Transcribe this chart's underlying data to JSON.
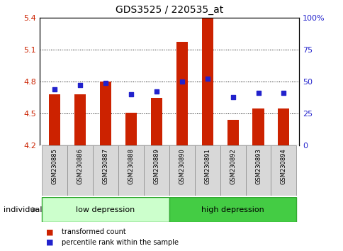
{
  "title": "GDS3525 / 220535_at",
  "samples": [
    "GSM230885",
    "GSM230886",
    "GSM230887",
    "GSM230888",
    "GSM230889",
    "GSM230890",
    "GSM230891",
    "GSM230892",
    "GSM230893",
    "GSM230894"
  ],
  "bar_values": [
    4.68,
    4.68,
    4.8,
    4.51,
    4.65,
    5.17,
    5.39,
    4.44,
    4.55,
    4.55
  ],
  "bar_base": 4.2,
  "percentile_values": [
    44,
    47,
    49,
    40,
    42,
    50,
    52,
    38,
    41,
    41
  ],
  "ylim_left": [
    4.2,
    5.4
  ],
  "ylim_right": [
    0,
    100
  ],
  "yticks_left": [
    4.2,
    4.5,
    4.8,
    5.1,
    5.4
  ],
  "ytick_labels_left": [
    "4.2",
    "4.5",
    "4.8",
    "5.1",
    "5.4"
  ],
  "yticks_right": [
    0,
    25,
    50,
    75,
    100
  ],
  "ytick_labels_right": [
    "0",
    "25",
    "50",
    "75",
    "100%"
  ],
  "bar_color": "#cc2200",
  "dot_color": "#2222cc",
  "group_labels": [
    "low depression",
    "high depression"
  ],
  "group_colors": [
    "#ccffcc",
    "#44cc44"
  ],
  "group_split": 5,
  "legend_red": "transformed count",
  "legend_blue": "percentile rank within the sample",
  "individual_label": "individual",
  "bar_width": 0.45
}
